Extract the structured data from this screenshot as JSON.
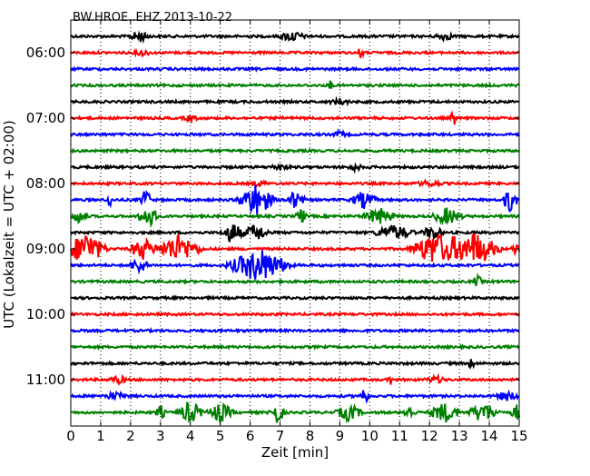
{
  "chart_data": {
    "type": "line",
    "title": "BW.HROE..EHZ 2013-10-22",
    "xlabel": "Zeit  [min]",
    "ylabel": "UTC (Lokalzeit = UTC + 02:00)",
    "xlim": [
      0,
      15
    ],
    "x_ticks": [
      "0",
      "1",
      "2",
      "3",
      "4",
      "5",
      "6",
      "7",
      "8",
      "9",
      "10",
      "11",
      "12",
      "13",
      "14",
      "15"
    ],
    "y_tick_labels": [
      "06:00",
      "07:00",
      "08:00",
      "09:00",
      "10:00",
      "11:00"
    ],
    "trace_interval_min": 15,
    "trace_start": "05:45",
    "colors": [
      "#000000",
      "#ff0000",
      "#0000ff",
      "#008000"
    ],
    "grid": "dotted vertical",
    "series": [
      {
        "start": "05:45",
        "color": "#000000",
        "bursts": [
          [
            2.3,
            0.4,
            2.0
          ],
          [
            7.4,
            0.5,
            1.8
          ],
          [
            12.5,
            0.4,
            1.2
          ]
        ]
      },
      {
        "start": "06:00",
        "color": "#ff0000",
        "bursts": [
          [
            2.4,
            0.3,
            1.2
          ],
          [
            9.7,
            0.1,
            3.0
          ]
        ]
      },
      {
        "start": "06:15",
        "color": "#0000ff",
        "bursts": []
      },
      {
        "start": "06:30",
        "color": "#008000",
        "bursts": [
          [
            8.7,
            0.1,
            2.0
          ]
        ]
      },
      {
        "start": "06:45",
        "color": "#000000",
        "bursts": [
          [
            9.0,
            0.4,
            1.0
          ]
        ]
      },
      {
        "start": "07:00",
        "color": "#ff0000",
        "bursts": [
          [
            4.0,
            0.3,
            1.0
          ],
          [
            12.8,
            0.1,
            4.0
          ]
        ]
      },
      {
        "start": "07:15",
        "color": "#0000ff",
        "bursts": [
          [
            9.0,
            0.3,
            1.0
          ]
        ]
      },
      {
        "start": "07:30",
        "color": "#008000",
        "bursts": []
      },
      {
        "start": "07:45",
        "color": "#000000",
        "bursts": [
          [
            7.0,
            0.4,
            1.0
          ],
          [
            9.5,
            0.3,
            1.0
          ]
        ]
      },
      {
        "start": "08:00",
        "color": "#ff0000",
        "bursts": [
          [
            6.3,
            0.3,
            1.0
          ],
          [
            12.0,
            0.5,
            1.0
          ]
        ]
      },
      {
        "start": "08:15",
        "color": "#0000ff",
        "bursts": [
          [
            1.3,
            0.1,
            3.5
          ],
          [
            2.5,
            0.2,
            4.5
          ],
          [
            6.2,
            0.7,
            6.0
          ],
          [
            7.5,
            0.4,
            3.0
          ],
          [
            9.8,
            0.5,
            3.0
          ],
          [
            14.7,
            0.3,
            4.5
          ]
        ]
      },
      {
        "start": "08:30",
        "color": "#008000",
        "bursts": [
          [
            0.3,
            0.3,
            2.5
          ],
          [
            2.6,
            0.4,
            4.0
          ],
          [
            7.7,
            0.2,
            3.0
          ],
          [
            10.3,
            0.6,
            3.0
          ],
          [
            12.6,
            0.6,
            3.0
          ]
        ]
      },
      {
        "start": "08:45",
        "color": "#000000",
        "bursts": [
          [
            5.4,
            0.4,
            4.0
          ],
          [
            6.2,
            0.5,
            3.0
          ],
          [
            10.8,
            0.8,
            2.5
          ],
          [
            12.1,
            0.4,
            2.5
          ]
        ]
      },
      {
        "start": "09:00",
        "color": "#ff0000",
        "bursts": [
          [
            0.5,
            0.8,
            6.0
          ],
          [
            2.4,
            0.5,
            4.0
          ],
          [
            3.6,
            0.9,
            5.0
          ],
          [
            12.2,
            1.0,
            6.0
          ],
          [
            13.5,
            1.0,
            6.0
          ],
          [
            14.9,
            0.2,
            2.0
          ]
        ]
      },
      {
        "start": "09:15",
        "color": "#0000ff",
        "bursts": [
          [
            2.3,
            0.4,
            2.5
          ],
          [
            6.3,
            1.2,
            6.0
          ]
        ]
      },
      {
        "start": "09:30",
        "color": "#008000",
        "bursts": [
          [
            13.6,
            0.2,
            2.0
          ]
        ]
      },
      {
        "start": "09:45",
        "color": "#000000",
        "bursts": []
      },
      {
        "start": "10:00",
        "color": "#ff0000",
        "bursts": []
      },
      {
        "start": "10:15",
        "color": "#0000ff",
        "bursts": []
      },
      {
        "start": "10:30",
        "color": "#008000",
        "bursts": []
      },
      {
        "start": "10:45",
        "color": "#000000",
        "bursts": [
          [
            13.4,
            0.1,
            3.0
          ]
        ]
      },
      {
        "start": "11:00",
        "color": "#ff0000",
        "bursts": [
          [
            1.6,
            0.4,
            1.2
          ],
          [
            10.7,
            0.1,
            2.0
          ],
          [
            12.2,
            0.4,
            1.2
          ]
        ]
      },
      {
        "start": "11:15",
        "color": "#0000ff",
        "bursts": [
          [
            1.5,
            0.5,
            1.2
          ],
          [
            9.8,
            0.2,
            3.0
          ],
          [
            14.6,
            0.5,
            1.5
          ]
        ]
      },
      {
        "start": "11:30",
        "color": "#008000",
        "bursts": [
          [
            3.0,
            0.2,
            2.5
          ],
          [
            4.0,
            0.5,
            4.0
          ],
          [
            5.0,
            0.5,
            3.5
          ],
          [
            6.9,
            0.3,
            4.0
          ],
          [
            9.3,
            0.5,
            3.0
          ],
          [
            11.3,
            0.3,
            2.0
          ],
          [
            12.5,
            0.6,
            3.5
          ],
          [
            13.8,
            0.6,
            3.5
          ],
          [
            14.9,
            0.2,
            3.0
          ]
        ]
      }
    ]
  }
}
